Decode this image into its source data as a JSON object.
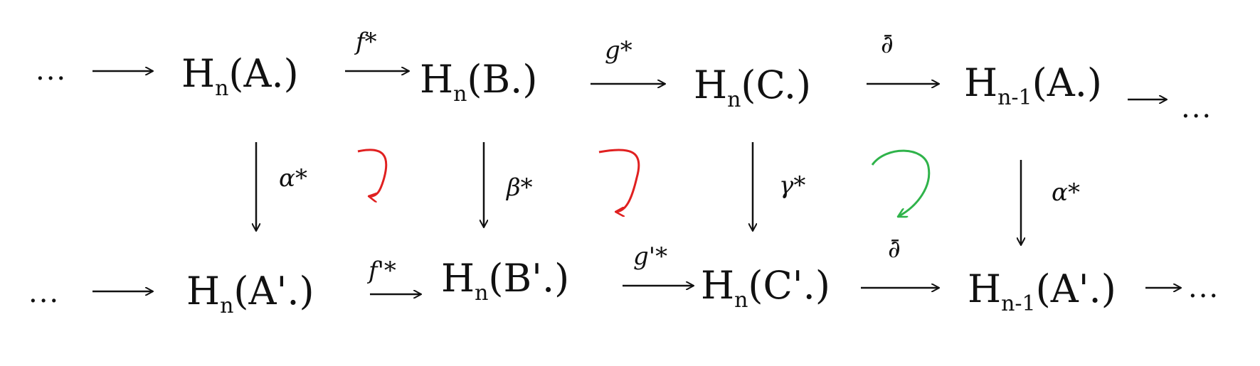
{
  "top_row": [
    {
      "base": "H",
      "sub": "n",
      "arg": "(A.)"
    },
    {
      "base": "H",
      "sub": "n",
      "arg": "(B.)"
    },
    {
      "base": "H",
      "sub": "n",
      "arg": "(C.)"
    },
    {
      "base": "H",
      "sub": "n-1",
      "arg": "(A.)"
    }
  ],
  "bottom_row": [
    {
      "base": "H",
      "sub": "n",
      "arg": "(A'.)"
    },
    {
      "base": "H",
      "sub": "n",
      "arg": "(B'.)"
    },
    {
      "base": "H",
      "sub": "n",
      "arg": "(C'.)"
    },
    {
      "base": "H",
      "sub": "n-1",
      "arg": "(A'.)"
    }
  ],
  "top_maps": [
    "f*",
    "g*",
    "∂̄"
  ],
  "bottom_maps": [
    "f'*",
    "g'*",
    "∂̄"
  ],
  "vertical_maps": [
    "α*",
    "β*",
    "γ*",
    "α*"
  ],
  "ellipsis": "...",
  "colors": {
    "ink": "#111111",
    "commutes_square_1": "#e02020",
    "commutes_square_2": "#e02020",
    "commutes_square_3": "#2fb34a"
  }
}
